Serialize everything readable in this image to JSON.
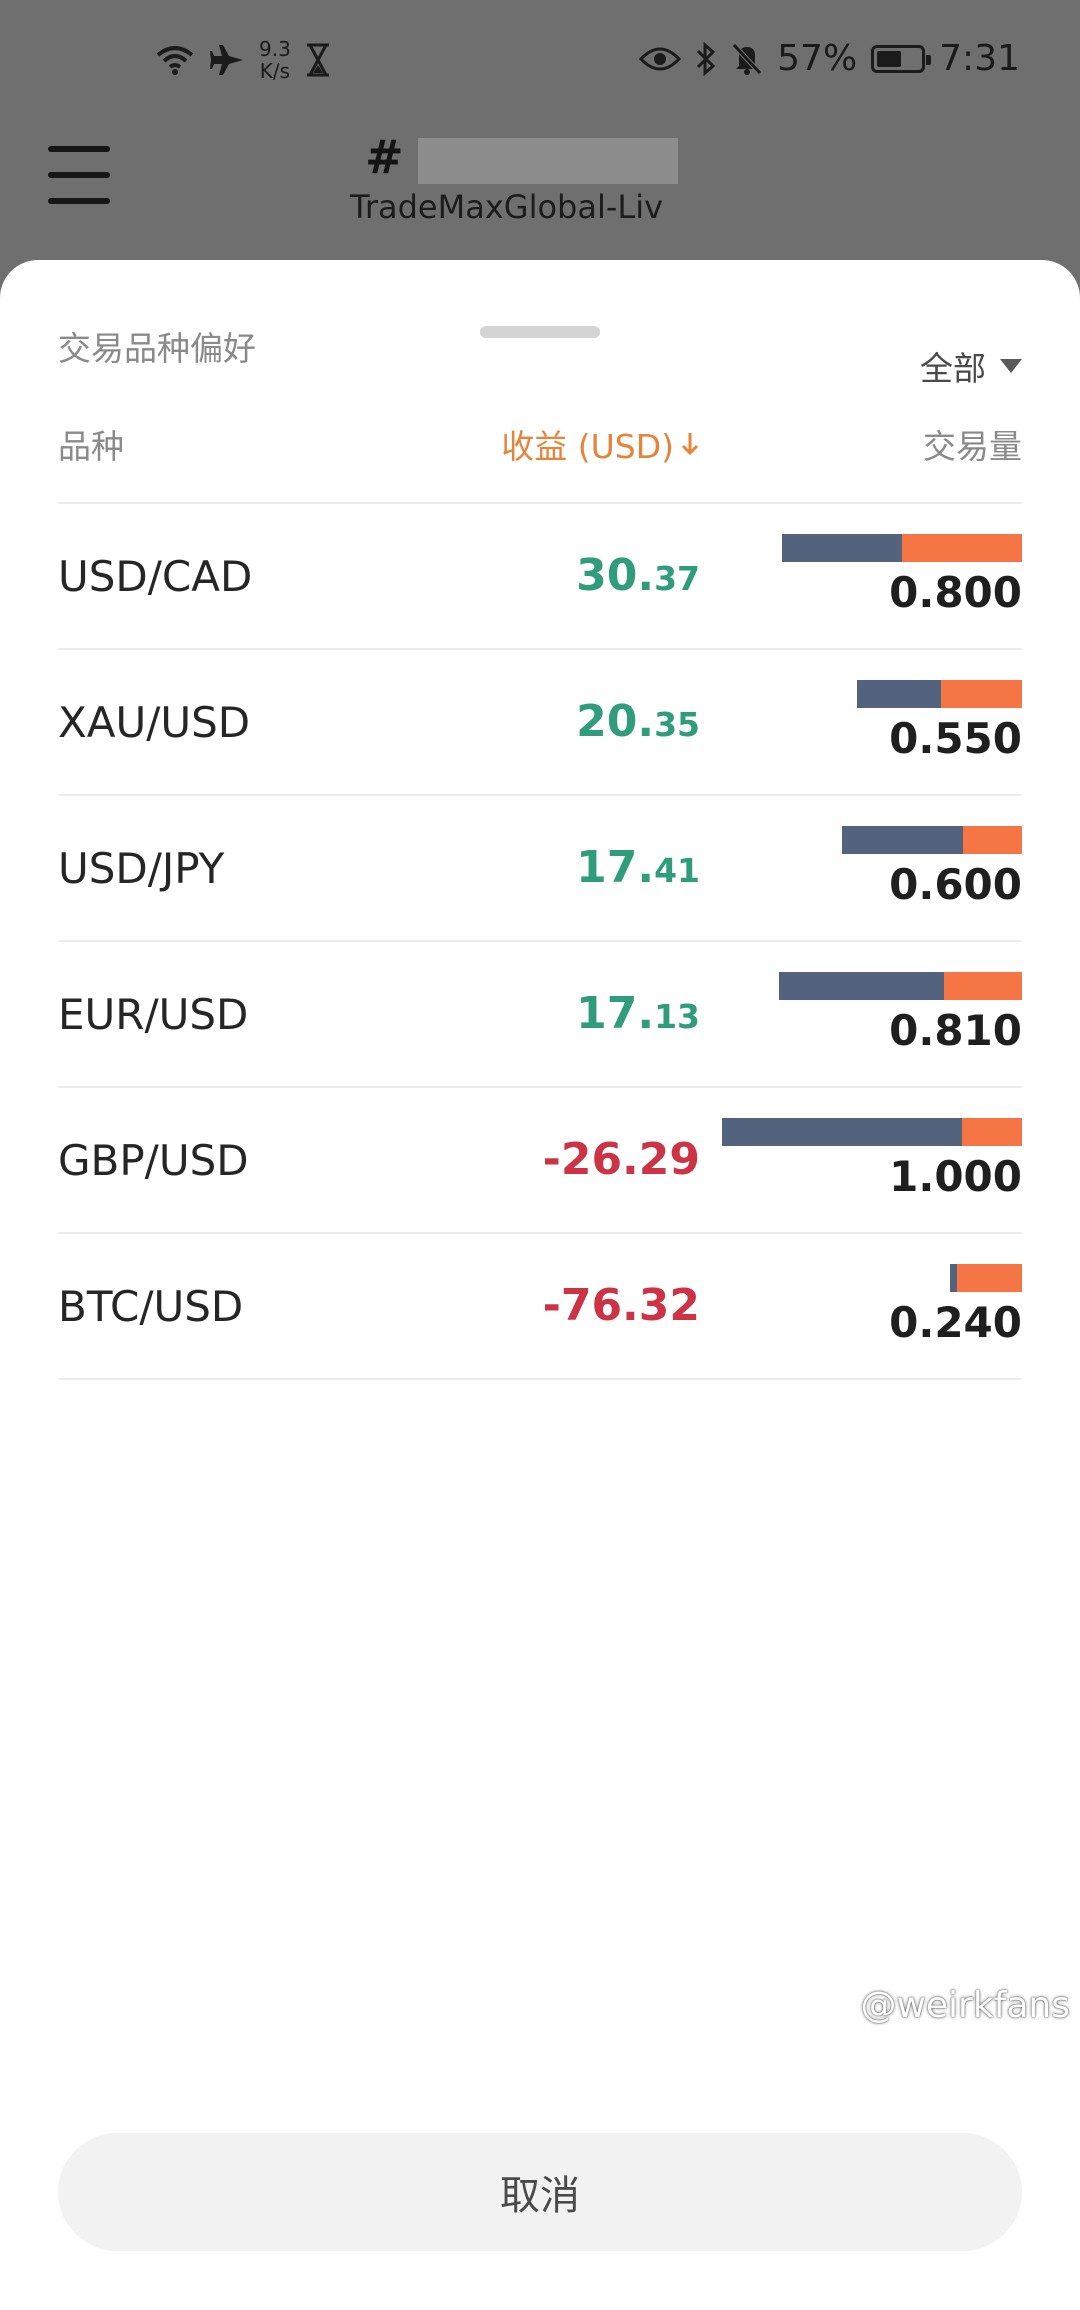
{
  "status_bar": {
    "net_speed_value": "9.3",
    "net_speed_unit": "K/s",
    "battery_percent": "57%",
    "battery_level": 0.57,
    "time": "7:31"
  },
  "header": {
    "account_prefix": "#",
    "server": "TradeMaxGlobal-Liv"
  },
  "sheet": {
    "title": "交易品种偏好",
    "filter_label": "全部",
    "columns": {
      "name": "品种",
      "profit": "收益 (USD)",
      "volume": "交易量"
    },
    "rows": [
      {
        "symbol": "USD/CAD",
        "profit_int": "30.",
        "profit_dec": "37",
        "sign": "pos",
        "volume": "0.800",
        "blue_ratio": 0.5
      },
      {
        "symbol": "XAU/USD",
        "profit_int": "20.",
        "profit_dec": "35",
        "sign": "pos",
        "volume": "0.550",
        "blue_ratio": 0.51
      },
      {
        "symbol": "USD/JPY",
        "profit_int": "17.",
        "profit_dec": "41",
        "sign": "pos",
        "volume": "0.600",
        "blue_ratio": 0.67
      },
      {
        "symbol": "EUR/USD",
        "profit_int": "17.",
        "profit_dec": "13",
        "sign": "pos",
        "volume": "0.810",
        "blue_ratio": 0.68
      },
      {
        "symbol": "GBP/USD",
        "profit_int": "-26.29",
        "profit_dec": "",
        "sign": "neg",
        "volume": "1.000",
        "blue_ratio": 0.8
      },
      {
        "symbol": "BTC/USD",
        "profit_int": "-76.32",
        "profit_dec": "",
        "sign": "neg",
        "volume": "0.240",
        "blue_ratio": 0.1
      }
    ],
    "cancel_label": "取消"
  },
  "watermark": "@weirkfans",
  "colors": {
    "positive": "#2f9d7b",
    "negative": "#cc3344",
    "accent": "#e8833a",
    "bar_blue": "#53637d",
    "bar_orange": "#f57544"
  }
}
